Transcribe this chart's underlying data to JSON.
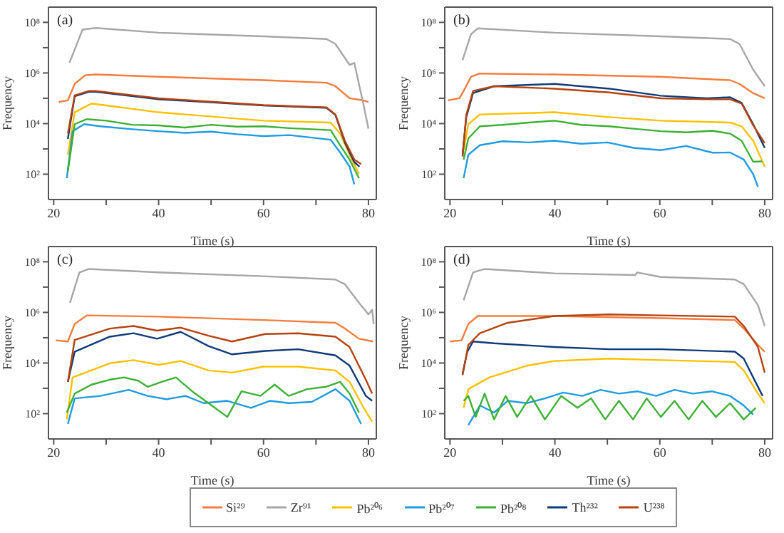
{
  "chart_data": [
    {
      "type": "line",
      "title": "(a)",
      "xlabel": "Time (s)",
      "ylabel": "Frequency",
      "log": true,
      "marker": "none",
      "xlim": [
        19,
        81.5
      ],
      "ylim": [
        10,
        400000000
      ],
      "xticks": [
        20,
        {
          "value": 30,
          "label": null
        },
        40,
        {
          "value": 50,
          "label": null
        },
        60,
        {
          "value": 70,
          "label": null
        },
        80
      ],
      "yticks": [
        {
          "value": 100,
          "label": "10²"
        },
        {
          "value": 1000,
          "label": null
        },
        {
          "value": 10000,
          "label": "10⁴"
        },
        {
          "value": 100000,
          "label": null
        },
        {
          "value": 1000000,
          "label": "10⁶"
        },
        {
          "value": 10000000,
          "label": null
        },
        {
          "value": 100000000,
          "label": "10⁸"
        }
      ],
      "series": [
        {
          "color": "#f47c3c",
          "x": [
            21,
            22.7,
            24,
            26,
            28,
            40,
            60,
            72,
            73.7,
            76.4,
            79,
            80
          ],
          "values": [
            72000,
            83000,
            370000,
            810000,
            870000,
            710000,
            520000,
            410000,
            300000,
            100000,
            83000,
            71000
          ]
        },
        {
          "color": "#a6a6a6",
          "x": [
            23,
            25.5,
            28,
            40,
            60,
            72,
            73.7,
            76.4,
            77.3,
            79,
            80
          ],
          "values": [
            2500000,
            52000000,
            60000000,
            39000000,
            28000000,
            22000000,
            14000000,
            2100000,
            2500000,
            63000,
            6300
          ]
        },
        {
          "color": "#ffc000",
          "x": [
            22.7,
            24,
            27.2,
            40,
            60,
            72.8,
            74.6,
            76.4,
            78.2
          ],
          "values": [
            590,
            28000,
            62000,
            28000,
            13000,
            11000,
            4000,
            590,
            105
          ]
        },
        {
          "color": "#1f9be0",
          "x": [
            22.5,
            23.6,
            25.8,
            28.9,
            35,
            40,
            45,
            50,
            55,
            60,
            65,
            72.8,
            74.6,
            76.4,
            77.3
          ],
          "values": [
            70,
            5000,
            9500,
            7800,
            6000,
            5000,
            4300,
            4800,
            3800,
            3200,
            3500,
            2300,
            720,
            200,
            40
          ]
        },
        {
          "color": "#3cb034",
          "x": [
            22.7,
            24,
            26.3,
            30,
            35,
            40,
            45,
            50,
            55,
            60,
            65,
            72.8,
            74.6,
            76.4,
            78.2
          ],
          "values": [
            130,
            9500,
            15000,
            13000,
            9000,
            8500,
            7000,
            9000,
            7600,
            7800,
            6600,
            5500,
            1400,
            380,
            70
          ]
        },
        {
          "color": "#0f3a78",
          "x": [
            22.7,
            24,
            26.7,
            28,
            40,
            60,
            72,
            73.7,
            75.5,
            77.3,
            78.3
          ],
          "values": [
            2500,
            120000,
            180000,
            180000,
            92000,
            52000,
            42000,
            22000,
            1800,
            300,
            200
          ]
        },
        {
          "color": "#b5420f",
          "x": [
            22.7,
            24,
            26.7,
            28,
            40,
            60,
            72,
            73.7,
            75.5,
            77.3,
            78.6
          ],
          "values": [
            4000,
            130000,
            195000,
            195000,
            100000,
            54000,
            44000,
            23000,
            2100,
            380,
            250
          ]
        }
      ]
    },
    {
      "type": "line",
      "title": "(b)",
      "xlabel": "Time (s)",
      "ylabel": "Frequency",
      "log": true,
      "marker": "none",
      "xlim": [
        19,
        81.5
      ],
      "ylim": [
        10,
        400000000
      ],
      "xticks": [
        20,
        {
          "value": 30,
          "label": null
        },
        40,
        {
          "value": 50,
          "label": null
        },
        60,
        {
          "value": 70,
          "label": null
        },
        80
      ],
      "yticks": [
        {
          "value": 100,
          "label": "10²"
        },
        {
          "value": 1000,
          "label": null
        },
        {
          "value": 10000,
          "label": "10⁴"
        },
        {
          "value": 100000,
          "label": null
        },
        {
          "value": 1000000,
          "label": "10⁶"
        },
        {
          "value": 10000000,
          "label": null
        },
        {
          "value": 100000000,
          "label": "10⁸"
        }
      ],
      "series": [
        {
          "color": "#f47c3c",
          "x": [
            19.6,
            21.8,
            22.6,
            24,
            25.7,
            39.9,
            60.2,
            73.4,
            75.2,
            77.8,
            80
          ],
          "values": [
            83000,
            100000,
            195000,
            710000,
            950000,
            870000,
            710000,
            520000,
            370000,
            160000,
            100000
          ]
        },
        {
          "color": "#a6a6a6",
          "x": [
            22.4,
            24,
            25.3,
            39.9,
            60.2,
            73.4,
            75.2,
            77.8,
            80
          ],
          "values": [
            3200000,
            34000000,
            58000000,
            39000000,
            28000000,
            22000000,
            14000000,
            1350000,
            300000
          ]
        },
        {
          "color": "#ffc000",
          "x": [
            22.6,
            23.5,
            25.7,
            39.9,
            50.4,
            60.2,
            73.4,
            75.6,
            77.8,
            80
          ],
          "values": [
            890,
            9500,
            23000,
            28000,
            18000,
            13000,
            11000,
            7800,
            2100,
            200
          ]
        },
        {
          "color": "#1f9be0",
          "x": [
            22.6,
            23.5,
            25.7,
            30,
            35,
            39.9,
            45,
            50,
            55,
            60.2,
            65,
            70,
            73.4,
            76,
            77.8,
            78.7
          ],
          "values": [
            70,
            590,
            1400,
            2000,
            1800,
            2100,
            1600,
            1800,
            1100,
            890,
            1300,
            710,
            720,
            380,
            100,
            32
          ]
        },
        {
          "color": "#3cb034",
          "x": [
            22.6,
            23.5,
            25.7,
            30,
            35,
            39.9,
            45,
            50.4,
            55,
            60.2,
            65,
            70,
            73.4,
            75.6,
            77.8,
            79.5
          ],
          "values": [
            380,
            2600,
            7800,
            8900,
            11000,
            13000,
            8900,
            7800,
            6300,
            5000,
            4500,
            5200,
            4000,
            2100,
            310,
            320
          ]
        },
        {
          "color": "#0f3a78",
          "x": [
            22.4,
            23.1,
            24.4,
            28.4,
            39.9,
            50.4,
            60.2,
            69,
            73.4,
            75.6,
            77.8,
            80
          ],
          "values": [
            590,
            18000,
            160000,
            300000,
            370000,
            240000,
            126000,
            100000,
            110000,
            66000,
            9500,
            1100
          ]
        },
        {
          "color": "#b5420f",
          "x": [
            22.4,
            23.1,
            24.4,
            28.4,
            39.9,
            50.4,
            60.2,
            69,
            73.4,
            75.6,
            77.8,
            80
          ],
          "values": [
            500,
            22000,
            195000,
            300000,
            240000,
            170000,
            100000,
            91000,
            91000,
            62000,
            8500,
            1700
          ]
        }
      ]
    },
    {
      "type": "line",
      "title": "(c)",
      "xlabel": "Time (s)",
      "ylabel": "Frequency",
      "log": true,
      "marker": "none",
      "xlim": [
        19,
        81.5
      ],
      "ylim": [
        10,
        400000000
      ],
      "xticks": [
        20,
        {
          "value": 30,
          "label": null
        },
        40,
        {
          "value": 50,
          "label": null
        },
        60,
        {
          "value": 70,
          "label": null
        },
        80
      ],
      "yticks": [
        {
          "value": 100,
          "label": "10²"
        },
        {
          "value": 1000,
          "label": null
        },
        {
          "value": 10000,
          "label": "10⁴"
        },
        {
          "value": 100000,
          "label": null
        },
        {
          "value": 1000000,
          "label": "10⁶"
        },
        {
          "value": 10000000,
          "label": null
        },
        {
          "value": 100000000,
          "label": "10⁸"
        }
      ],
      "series": [
        {
          "color": "#f47c3c",
          "x": [
            20.4,
            22.7,
            24,
            26.3,
            40,
            60,
            73.7,
            75.5,
            78.2,
            80.9
          ],
          "values": [
            79000,
            71000,
            350000,
            760000,
            680000,
            500000,
            390000,
            230000,
            91000,
            71000
          ]
        },
        {
          "color": "#a6a6a6",
          "x": [
            23.1,
            24.9,
            26.7,
            40,
            60,
            73.7,
            75.5,
            78.2,
            80,
            80.7,
            81
          ],
          "values": [
            2400000,
            38000000,
            52000000,
            38000000,
            27000000,
            20000000,
            13000000,
            2400000,
            830000,
            1260000,
            350000
          ]
        },
        {
          "color": "#ffc000",
          "x": [
            22.5,
            23.6,
            30.7,
            35.2,
            40,
            44.2,
            49.5,
            54,
            60,
            66.6,
            73.7,
            76.4,
            79.1,
            80.7
          ],
          "values": [
            60,
            2700,
            9800,
            13000,
            8500,
            12000,
            5100,
            4200,
            7200,
            7200,
            5100,
            1800,
            170,
            48
          ]
        },
        {
          "color": "#1f9be0",
          "x": [
            22.7,
            24,
            28.9,
            34.3,
            37.9,
            41.5,
            45.1,
            48.6,
            53.1,
            57.6,
            61.2,
            64.8,
            69.2,
            73.7,
            76.4,
            78.6
          ],
          "values": [
            39,
            400,
            500,
            870,
            500,
            370,
            500,
            260,
            320,
            170,
            320,
            260,
            290,
            930,
            320,
            39
          ]
        },
        {
          "color": "#3cb034",
          "x": [
            22.5,
            24,
            27.2,
            30.7,
            33.4,
            36.1,
            37.9,
            40.6,
            43.3,
            46.4,
            49.5,
            53.1,
            55.8,
            59.4,
            62.1,
            64.8,
            68.3,
            71.9,
            74.6,
            76.4,
            78.2
          ],
          "values": [
            110,
            620,
            1400,
            2200,
            2700,
            2000,
            1150,
            1800,
            2700,
            760,
            260,
            74,
            760,
            500,
            1400,
            500,
            930,
            1150,
            1800,
            620,
            110
          ]
        },
        {
          "color": "#0f3a78",
          "x": [
            22.7,
            24,
            30.7,
            35.2,
            39.7,
            44.2,
            49.5,
            54,
            60.3,
            66.6,
            73.7,
            76.4,
            79.5,
            80.7
          ],
          "values": [
            1800,
            28000,
            110000,
            150000,
            91000,
            170000,
            47000,
            22000,
            30000,
            35000,
            20000,
            7900,
            500,
            320
          ]
        },
        {
          "color": "#b5420f",
          "x": [
            22.7,
            24,
            30.7,
            35.2,
            39.7,
            44.2,
            49.5,
            54,
            60.3,
            66.6,
            73.7,
            76.4,
            79.5,
            80.7
          ],
          "values": [
            1800,
            81000,
            230000,
            290000,
            190000,
            250000,
            120000,
            71000,
            140000,
            150000,
            110000,
            43000,
            2200,
            620
          ]
        }
      ]
    },
    {
      "type": "line",
      "title": "(d)",
      "xlabel": "Time (s)",
      "ylabel": "Frequency",
      "log": true,
      "marker": "none",
      "legend": "bottom",
      "xlim": [
        19,
        81.5
      ],
      "ylim": [
        10,
        400000000
      ],
      "xticks": [
        20,
        {
          "value": 30,
          "label": null
        },
        40,
        {
          "value": 50,
          "label": null
        },
        60,
        {
          "value": 70,
          "label": null
        },
        80
      ],
      "yticks": [
        {
          "value": 100,
          "label": "10²"
        },
        {
          "value": 1000,
          "label": null
        },
        {
          "value": 10000,
          "label": "10⁴"
        },
        {
          "value": 100000,
          "label": null
        },
        {
          "value": 1000000,
          "label": "10⁶"
        },
        {
          "value": 10000000,
          "label": null
        },
        {
          "value": 100000000,
          "label": "10⁸"
        }
      ],
      "series": [
        {
          "name": "Si²⁹",
          "color": "#f47c3c",
          "x": [
            20,
            22.2,
            23.5,
            25.3,
            39.9,
            60.2,
            74.3,
            76,
            78.7,
            80
          ],
          "values": [
            71000,
            79000,
            350000,
            720000,
            720000,
            590000,
            500000,
            230000,
            52000,
            28000
          ]
        },
        {
          "name": "Zr⁹¹",
          "color": "#a6a6a6",
          "x": [
            22.6,
            24.4,
            26.6,
            39.9,
            55.3,
            55.7,
            60.2,
            74.3,
            76,
            78.7,
            80
          ],
          "values": [
            3000000,
            38000000,
            52000000,
            35000000,
            30000000,
            38000000,
            25000000,
            20000000,
            13000000,
            1950000,
            290000
          ]
        },
        {
          "name": "Pb²⁰⁶",
          "color": "#ffc000",
          "x": [
            22.6,
            23.5,
            27.5,
            34.6,
            39.9,
            50.4,
            60.2,
            74.3,
            76,
            78.7,
            80
          ],
          "values": [
            170,
            930,
            2700,
            7800,
            12000,
            15000,
            13000,
            11000,
            5100,
            620,
            260
          ]
        },
        {
          "name": "Pb²⁰⁷",
          "color": "#1f9be0",
          "x": [
            23.5,
            25.7,
            28.4,
            31,
            34.6,
            38.1,
            41.6,
            45.2,
            48.7,
            52.2,
            55.7,
            59.3,
            62.8,
            66.3,
            69.9,
            73.4,
            76,
            77.8
          ],
          "values": [
            35,
            210,
            110,
            320,
            260,
            400,
            680,
            500,
            870,
            620,
            760,
            500,
            870,
            620,
            760,
            500,
            210,
            91
          ]
        },
        {
          "name": "Pb²⁰⁸",
          "color": "#3cb034",
          "x": [
            22.6,
            23.5,
            24.9,
            26.6,
            28.4,
            30.6,
            32.8,
            35.4,
            38.1,
            41.2,
            44.3,
            46.9,
            49.6,
            52.2,
            54.9,
            57.5,
            60.2,
            62.8,
            65.5,
            68.1,
            70.7,
            73.4,
            76,
            78.3
          ],
          "values": [
            320,
            500,
            74,
            620,
            59,
            500,
            74,
            500,
            59,
            500,
            170,
            400,
            59,
            320,
            59,
            400,
            74,
            320,
            59,
            320,
            74,
            260,
            59,
            170
          ]
        },
        {
          "name": "Th²³²",
          "color": "#0f3a78",
          "x": [
            22.4,
            23.3,
            24.4,
            28.4,
            39.9,
            50.4,
            60.2,
            74.3,
            76,
            77.8,
            79.6
          ],
          "values": [
            3800,
            28000,
            71000,
            60000,
            43000,
            35000,
            35000,
            28000,
            15000,
            2700,
            500
          ]
        },
        {
          "name": "U²³⁸",
          "color": "#b5420f",
          "x": [
            22.4,
            23.5,
            25.7,
            31,
            39.9,
            50.4,
            60.2,
            74.3,
            76,
            78.7,
            80
          ],
          "values": [
            3300,
            52000,
            150000,
            390000,
            720000,
            830000,
            760000,
            680000,
            290000,
            43000,
            4200
          ]
        }
      ]
    }
  ]
}
